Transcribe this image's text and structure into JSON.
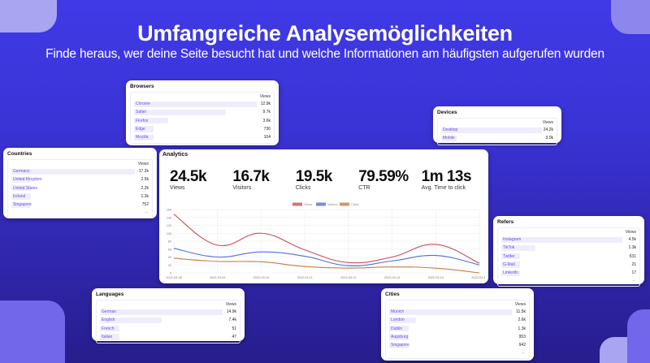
{
  "header": {
    "title": "Umfangreiche Analysemöglichkeiten",
    "subtitle": "Finde heraus, wer deine Seite besucht hat und welche Informationen am häufigsten aufgerufen wurden"
  },
  "colors": {
    "background": "#3a33d6",
    "accent_light": "#a9a5f0",
    "accent_mid": "#7266ea",
    "row_bar": "#efedfc",
    "link_text": "#6b4fd8",
    "views_line": "#c9505a",
    "visitors_line": "#4f6fd9",
    "clicks_line": "#c87a45"
  },
  "browsers": {
    "title": "Browsers",
    "views_header": "Views",
    "rows": [
      {
        "label": "Chrome",
        "value": "12.9k",
        "pct": 100
      },
      {
        "label": "Safari",
        "value": "9.7k",
        "pct": 75
      },
      {
        "label": "Firefox",
        "value": "3.6k",
        "pct": 28
      },
      {
        "label": "Edge",
        "value": "736",
        "pct": 6
      },
      {
        "label": "Mozilla",
        "value": "104",
        "pct": 1
      }
    ]
  },
  "devices": {
    "title": "Devices",
    "views_header": "Views",
    "rows": [
      {
        "label": "Desktop",
        "value": "24.2k",
        "pct": 100
      },
      {
        "label": "Mobile",
        "value": "3.0k",
        "pct": 12
      }
    ]
  },
  "countries": {
    "title": "Countries",
    "views_header": "Views",
    "more_icon": "arrow-right",
    "rows": [
      {
        "label": "Germany",
        "value": "17.2k",
        "pct": 100
      },
      {
        "label": "United Kingdom",
        "value": "2.5k",
        "pct": 15
      },
      {
        "label": "United States",
        "value": "2.2k",
        "pct": 13
      },
      {
        "label": "Ireland",
        "value": "1.3k",
        "pct": 8
      },
      {
        "label": "Singapore",
        "value": "752",
        "pct": 4
      }
    ]
  },
  "analytics": {
    "title": "Analytics",
    "stats": [
      {
        "value": "24.5k",
        "label": "Views"
      },
      {
        "value": "16.7k",
        "label": "Visitors"
      },
      {
        "value": "19.5k",
        "label": "Clicks"
      },
      {
        "value": "79.59%",
        "label": "CTR"
      },
      {
        "value": "1m 13s",
        "label": "Avg. Time to click"
      }
    ]
  },
  "chart_data": {
    "type": "line",
    "title": "",
    "xlabel": "",
    "ylabel": "",
    "x": [
      "2022-03-08",
      "2022-03-09",
      "2022-03-10",
      "2022-03-11",
      "2022-03-12",
      "2022-03-13",
      "2022-03-14",
      "2022-03-15"
    ],
    "series": [
      {
        "name": "Views",
        "color": "#c9505a",
        "values": [
          148,
          70,
          100,
          58,
          26,
          40,
          72,
          24
        ]
      },
      {
        "name": "Visitors",
        "color": "#4f6fd9",
        "values": [
          62,
          40,
          53,
          42,
          18,
          30,
          44,
          20
        ]
      },
      {
        "name": "Clicks",
        "color": "#c87a45",
        "values": [
          37,
          29,
          28,
          16,
          12,
          15,
          12,
          0
        ]
      }
    ],
    "ylim": [
      0,
      160
    ],
    "yticks": [
      0,
      20,
      40,
      60,
      80,
      100,
      120,
      140,
      160
    ],
    "grid": true,
    "legend_position": "top"
  },
  "refers": {
    "title": "Refers",
    "views_header": "Views",
    "more_icon": "arrow-right",
    "rows": [
      {
        "label": "Instagram",
        "value": "4.5k",
        "pct": 100
      },
      {
        "label": "TikTok",
        "value": "1.3k",
        "pct": 28
      },
      {
        "label": "Twitter",
        "value": "531",
        "pct": 12
      },
      {
        "label": "G-Mail",
        "value": "21",
        "pct": 1
      },
      {
        "label": "LinkedIn",
        "value": "17",
        "pct": 1
      }
    ]
  },
  "languages": {
    "title": "Languages",
    "views_header": "Views",
    "rows": [
      {
        "label": "German",
        "value": "14.9k",
        "pct": 100
      },
      {
        "label": "English",
        "value": "7.4k",
        "pct": 50
      },
      {
        "label": "French",
        "value": "51",
        "pct": 1
      },
      {
        "label": "Italian",
        "value": "47",
        "pct": 1
      }
    ]
  },
  "cities": {
    "title": "Cities",
    "views_header": "Views",
    "more_icon": "arrow-right",
    "rows": [
      {
        "label": "Munich",
        "value": "11.5k",
        "pct": 100
      },
      {
        "label": "London",
        "value": "2.6k",
        "pct": 22
      },
      {
        "label": "Dublin",
        "value": "1.3k",
        "pct": 11
      },
      {
        "label": "Augsburg",
        "value": "953",
        "pct": 8
      },
      {
        "label": "Singapore",
        "value": "942",
        "pct": 8
      }
    ]
  }
}
